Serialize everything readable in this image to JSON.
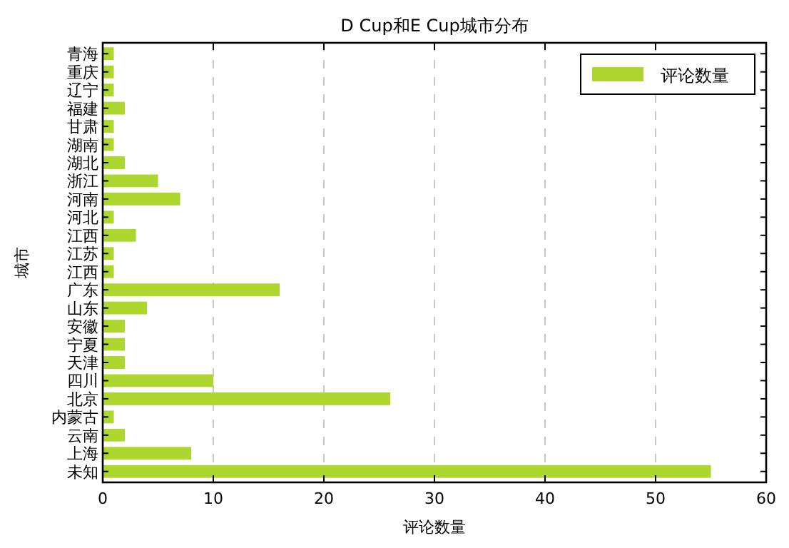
{
  "chart_data": {
    "type": "bar",
    "orientation": "horizontal",
    "title": "D Cup和E Cup城市分布",
    "xlabel": "评论数量",
    "ylabel": "城市",
    "categories": [
      "青海",
      "重庆",
      "辽宁",
      "福建",
      "甘肃",
      "湖南",
      "湖北",
      "浙江",
      "河南",
      "河北",
      "江西",
      "江苏",
      "江西",
      "广东",
      "山东",
      "安徽",
      "宁夏",
      "天津",
      "四川",
      "北京",
      "内蒙古",
      "云南",
      "上海",
      "未知"
    ],
    "series": [
      {
        "name": "评论数量",
        "color": "#add72f",
        "values": [
          1,
          1,
          1,
          2,
          1,
          1,
          2,
          5,
          7,
          1,
          3,
          1,
          1,
          16,
          4,
          2,
          2,
          2,
          10,
          26,
          1,
          2,
          8,
          55
        ]
      }
    ],
    "xlim": [
      0,
      60
    ],
    "xticks": [
      0,
      10,
      20,
      30,
      40,
      50,
      60
    ],
    "grid": "x",
    "legend": "top right"
  }
}
